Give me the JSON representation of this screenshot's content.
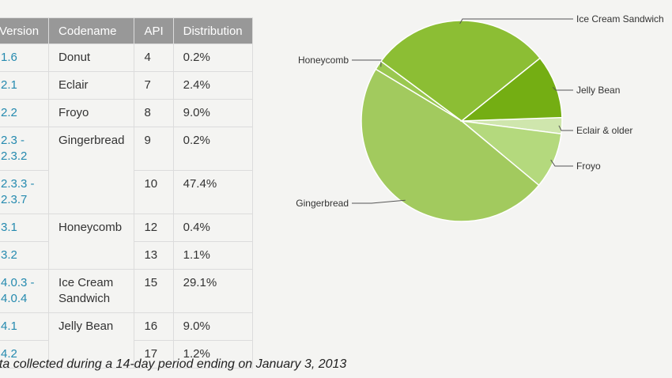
{
  "table": {
    "headers": [
      "Version",
      "Codename",
      "API",
      "Distribution"
    ],
    "rows": [
      {
        "version": "1.6",
        "codename": "Donut",
        "api": "4",
        "distribution": "0.2%"
      },
      {
        "version": "2.1",
        "codename": "Eclair",
        "api": "7",
        "distribution": "2.4%"
      },
      {
        "version": "2.2",
        "codename": "Froyo",
        "api": "8",
        "distribution": "9.0%"
      },
      {
        "version": "2.3 -\n2.3.2",
        "codename": "Gingerbread",
        "api": "9",
        "distribution": "0.2%"
      },
      {
        "version": "2.3.3 -\n2.3.7",
        "codename": "",
        "api": "10",
        "distribution": "47.4%"
      },
      {
        "version": "3.1",
        "codename": "Honeycomb",
        "api": "12",
        "distribution": "0.4%"
      },
      {
        "version": "3.2",
        "codename": "",
        "api": "13",
        "distribution": "1.1%"
      },
      {
        "version": "4.0.3 -\n4.0.4",
        "codename": "Ice Cream\nSandwich",
        "api": "15",
        "distribution": "29.1%"
      },
      {
        "version": "4.1",
        "codename": "Jelly Bean",
        "api": "16",
        "distribution": "9.0%"
      },
      {
        "version": "4.2",
        "codename": "",
        "api": "17",
        "distribution": "1.2%"
      }
    ]
  },
  "footnote": "ata collected during a 14-day period ending on January 3, 2013",
  "chart_data": {
    "type": "pie",
    "slices": [
      {
        "label": "Eclair & older",
        "value": 2.6,
        "color": "#cfe6ad"
      },
      {
        "label": "Froyo",
        "value": 9.0,
        "color": "#b4d97d"
      },
      {
        "label": "Gingerbread",
        "value": 47.6,
        "color": "#a2ca5e"
      },
      {
        "label": "Honeycomb",
        "value": 1.5,
        "color": "#9ac850"
      },
      {
        "label": "Ice Cream Sandwich",
        "value": 29.1,
        "color": "#8cbe34"
      },
      {
        "label": "Jelly Bean",
        "value": 10.2,
        "color": "#74ae13"
      }
    ]
  }
}
